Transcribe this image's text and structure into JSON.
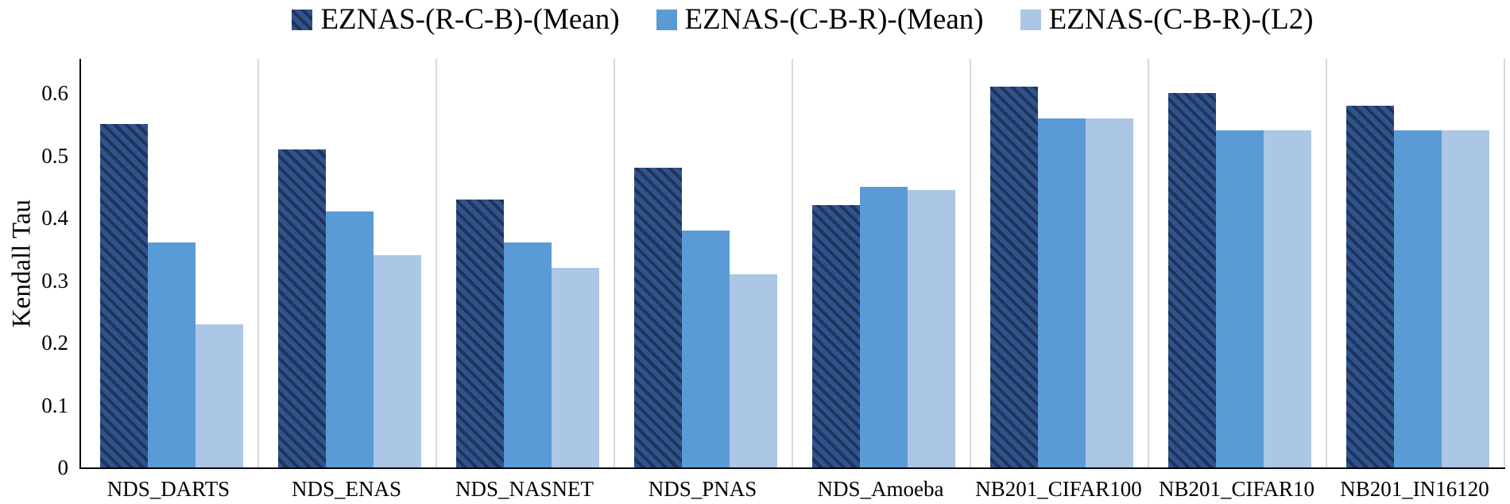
{
  "chart_data": {
    "type": "bar",
    "title": "",
    "xlabel": "",
    "ylabel": "Kendall Tau",
    "categories": [
      "NDS_DARTS",
      "NDS_ENAS",
      "NDS_NASNET",
      "NDS_PNAS",
      "NDS_Amoeba",
      "NB201_CIFAR100",
      "NB201_CIFAR10",
      "NB201_IN16120"
    ],
    "series": [
      {
        "name": "EZNAS-(R-C-B)-(Mean)",
        "color": "#30528E",
        "hatch": true,
        "hatch_color": "#1F3456",
        "values": [
          0.55,
          0.51,
          0.43,
          0.48,
          0.42,
          0.61,
          0.6,
          0.58
        ]
      },
      {
        "name": "EZNAS-(C-B-R)-(Mean)",
        "color": "#5B9BD5",
        "hatch": false,
        "values": [
          0.36,
          0.41,
          0.36,
          0.38,
          0.45,
          0.56,
          0.54,
          0.54
        ]
      },
      {
        "name": "EZNAS-(C-B-R)-(L2)",
        "color": "#ACC6E5",
        "hatch": false,
        "values": [
          0.23,
          0.34,
          0.32,
          0.31,
          0.445,
          0.56,
          0.54,
          0.54
        ]
      }
    ],
    "ylim": [
      0,
      0.655
    ],
    "yticks": [
      0,
      0.1,
      0.2,
      0.3,
      0.4,
      0.5,
      0.6
    ],
    "ytick_labels": [
      "0",
      "0.1",
      "0.2",
      "0.3",
      "0.4",
      "0.5",
      "0.6"
    ],
    "grid": "vertical-group-separators",
    "legend_position": "top-center",
    "colors": {
      "separator": "#D9D9D9",
      "axis": "#000000",
      "text": "#000000",
      "background": "#FFFFFF"
    }
  }
}
